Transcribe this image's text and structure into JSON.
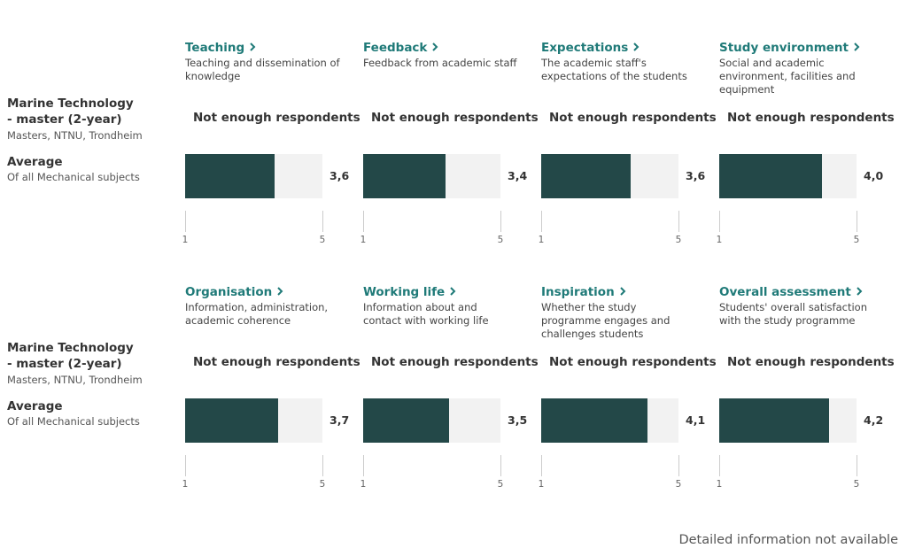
{
  "xlim": [
    1,
    5
  ],
  "xticks": [
    1,
    5
  ],
  "sections": [
    {
      "programme": {
        "title": "Marine Technology - master (2-year)",
        "subtitle": "Masters, NTNU, Trondheim"
      },
      "average": {
        "title": "Average",
        "subtitle": "Of all Mechanical subjects"
      },
      "cards": [
        {
          "title": "Teaching",
          "description": "Teaching and dissemination of knowledge",
          "message": "Not enough respondents",
          "value": 3.6,
          "value_label": "3,6"
        },
        {
          "title": "Feedback",
          "description": "Feedback from academic staff",
          "message": "Not enough respondents",
          "value": 3.4,
          "value_label": "3,4"
        },
        {
          "title": "Expectations",
          "description": "The academic staff's expectations of the students",
          "message": "Not enough respondents",
          "value": 3.6,
          "value_label": "3,6"
        },
        {
          "title": "Study environment",
          "description": "Social and academic environment, facilities and equipment",
          "message": "Not enough respondents",
          "value": 4.0,
          "value_label": "4,0"
        }
      ]
    },
    {
      "programme": {
        "title": "Marine Technology - master (2-year)",
        "subtitle": "Masters, NTNU, Trondheim"
      },
      "average": {
        "title": "Average",
        "subtitle": "Of all Mechanical subjects"
      },
      "cards": [
        {
          "title": "Organisation",
          "description": "Information, administration, academic coherence",
          "message": "Not enough respondents",
          "value": 3.7,
          "value_label": "3,7"
        },
        {
          "title": "Working life",
          "description": "Information about and contact with working life",
          "message": "Not enough respondents",
          "value": 3.5,
          "value_label": "3,5"
        },
        {
          "title": "Inspiration",
          "description": "Whether the study programme engages and challenges students",
          "message": "Not enough respondents",
          "value": 4.1,
          "value_label": "4,1"
        },
        {
          "title": "Overall assessment",
          "description": "Students' overall satisfaction with the study programme",
          "message": "Not enough respondents",
          "value": 4.2,
          "value_label": "4,2"
        }
      ]
    }
  ],
  "footer": "Detailed information not available"
}
